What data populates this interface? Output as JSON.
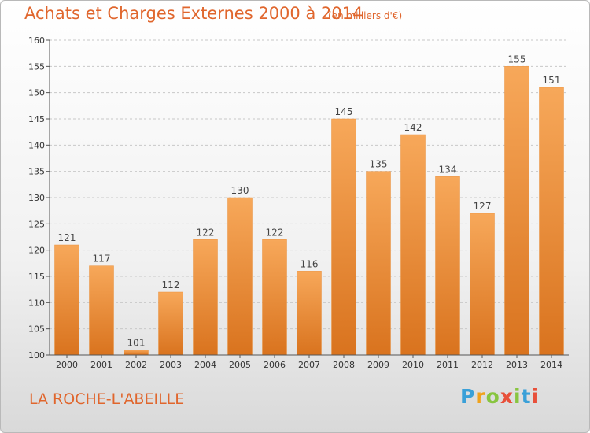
{
  "header": {
    "title": "Achats et Charges Externes 2000 à 2014",
    "subtitle": "(en milliers d'€)"
  },
  "footer": {
    "location": "LA ROCHE-L'ABEILLE",
    "brand": "Proxiti"
  },
  "colors": {
    "accent": "#e0662d",
    "bar_top": "#f7a85a",
    "bar_bottom": "#d9731e"
  },
  "chart_data": {
    "type": "bar",
    "title": "Achats et Charges Externes 2000 à 2014",
    "subtitle": "(en milliers d'€)",
    "xlabel": "",
    "ylabel": "",
    "categories": [
      "2000",
      "2001",
      "2002",
      "2003",
      "2004",
      "2005",
      "2006",
      "2007",
      "2008",
      "2009",
      "2010",
      "2011",
      "2012",
      "2013",
      "2014"
    ],
    "values": [
      121,
      117,
      101,
      112,
      122,
      130,
      122,
      116,
      145,
      135,
      142,
      134,
      127,
      155,
      151
    ],
    "ylim": [
      100,
      160
    ],
    "yticks": [
      100,
      105,
      110,
      115,
      120,
      125,
      130,
      135,
      140,
      145,
      150,
      155,
      160
    ],
    "grid": "horizontal dashed",
    "data_labels": true
  }
}
